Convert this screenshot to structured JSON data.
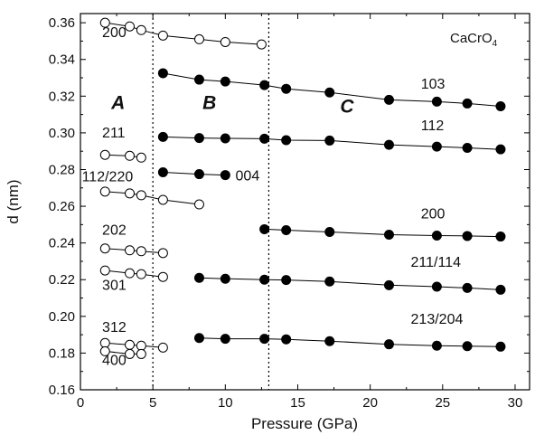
{
  "chart_data": {
    "type": "scatter",
    "compound": {
      "base": "CaCrO",
      "sub": "4"
    },
    "xlabel": "Pressure (GPa)",
    "ylabel": "d (nm)",
    "xlim": [
      0,
      31
    ],
    "ylim": [
      0.16,
      0.365
    ],
    "x_ticks": [
      0,
      5,
      10,
      15,
      20,
      25,
      30
    ],
    "y_ticks": [
      0.16,
      0.18,
      0.2,
      0.22,
      0.24,
      0.26,
      0.28,
      0.3,
      0.32,
      0.34,
      0.36
    ],
    "phase_boundaries": [
      5.0,
      13.0
    ],
    "regions": [
      {
        "label": "A",
        "x": 2.6,
        "y": 0.313
      },
      {
        "label": "B",
        "x": 8.9,
        "y": 0.313
      },
      {
        "label": "C",
        "x": 18.4,
        "y": 0.311
      }
    ],
    "series": [
      {
        "phase": "A",
        "marker": "open",
        "label": "200",
        "label_x": 1.5,
        "label_y": 0.3522,
        "x": [
          1.7,
          3.4,
          4.2,
          5.7,
          8.2,
          10.0,
          12.5
        ],
        "y": [
          0.36,
          0.358,
          0.356,
          0.353,
          0.351,
          0.3495,
          0.3482
        ]
      },
      {
        "phase": "A",
        "marker": "open",
        "label": "211",
        "label_x": 1.5,
        "label_y": 0.2975,
        "x": [
          1.7,
          3.4,
          4.2
        ],
        "y": [
          0.288,
          0.2875,
          0.2865
        ]
      },
      {
        "phase": "A",
        "marker": "open",
        "label": "112/220",
        "label_x": 0.1,
        "label_y": 0.2735,
        "x": [
          1.7,
          3.4,
          4.2,
          5.7,
          8.2
        ],
        "y": [
          0.268,
          0.267,
          0.266,
          0.2635,
          0.261
        ]
      },
      {
        "phase": "A",
        "marker": "open",
        "label": "202",
        "label_x": 1.5,
        "label_y": 0.2445,
        "x": [
          1.7,
          3.4,
          4.2,
          5.7
        ],
        "y": [
          0.237,
          0.236,
          0.2355,
          0.2345
        ]
      },
      {
        "phase": "A",
        "marker": "open",
        "label": "301",
        "label_x": 1.5,
        "label_y": 0.2145,
        "x": [
          1.7,
          3.4,
          4.2,
          5.7
        ],
        "y": [
          0.225,
          0.2235,
          0.223,
          0.2215
        ]
      },
      {
        "phase": "A",
        "marker": "open",
        "label": "312",
        "label_x": 1.5,
        "label_y": 0.1915,
        "x": [
          1.7,
          3.4,
          4.2,
          5.7
        ],
        "y": [
          0.1855,
          0.1845,
          0.184,
          0.183
        ]
      },
      {
        "phase": "A",
        "marker": "open",
        "label": "400",
        "label_x": 1.5,
        "label_y": 0.1735,
        "x": [
          1.7,
          3.4,
          4.2
        ],
        "y": [
          0.181,
          0.1795,
          0.1795
        ]
      },
      {
        "phase": "B",
        "marker": "filled",
        "label": "004",
        "label_x": 10.7,
        "label_y": 0.274,
        "x": [
          5.7,
          8.2,
          10.0
        ],
        "y": [
          0.2785,
          0.2775,
          0.277
        ]
      },
      {
        "phase": "B/C",
        "marker": "filled",
        "label": "103",
        "label_x": 23.5,
        "label_y": 0.324,
        "x": [
          5.7,
          8.2,
          10.0,
          12.7,
          14.2,
          17.2,
          21.3,
          24.6,
          26.7,
          29.0
        ],
        "y": [
          0.3325,
          0.329,
          0.328,
          0.326,
          0.324,
          0.322,
          0.318,
          0.317,
          0.316,
          0.3145
        ]
      },
      {
        "phase": "B/C",
        "marker": "filled",
        "label": "112",
        "label_x": 23.5,
        "label_y": 0.3015,
        "x": [
          5.7,
          8.2,
          10.0,
          12.7,
          14.2,
          17.2,
          21.3,
          24.6,
          26.7,
          29.0
        ],
        "y": [
          0.2978,
          0.2972,
          0.297,
          0.2968,
          0.296,
          0.2958,
          0.2935,
          0.2925,
          0.2918,
          0.291
        ]
      },
      {
        "phase": "C",
        "marker": "filled",
        "label": "200",
        "label_x": 23.5,
        "label_y": 0.2535,
        "x": [
          12.7,
          14.2,
          17.2,
          21.3,
          24.6,
          26.7,
          29.0
        ],
        "y": [
          0.2475,
          0.247,
          0.246,
          0.2445,
          0.244,
          0.2438,
          0.2435
        ]
      },
      {
        "phase": "B/C",
        "marker": "filled",
        "label": "211/114",
        "label_x": 22.8,
        "label_y": 0.227,
        "x": [
          8.2,
          10.0,
          12.7,
          14.2,
          17.2,
          21.3,
          24.6,
          26.7,
          29.0
        ],
        "y": [
          0.221,
          0.2205,
          0.22,
          0.2198,
          0.219,
          0.217,
          0.2162,
          0.2155,
          0.2145
        ]
      },
      {
        "phase": "B/C",
        "marker": "filled",
        "label": "213/204",
        "label_x": 22.8,
        "label_y": 0.196,
        "x": [
          8.2,
          10.0,
          12.7,
          14.2,
          17.2,
          21.3,
          24.6,
          26.7,
          29.0
        ],
        "y": [
          0.1882,
          0.1878,
          0.1878,
          0.1875,
          0.1865,
          0.1848,
          0.184,
          0.1838,
          0.1835
        ]
      }
    ]
  }
}
